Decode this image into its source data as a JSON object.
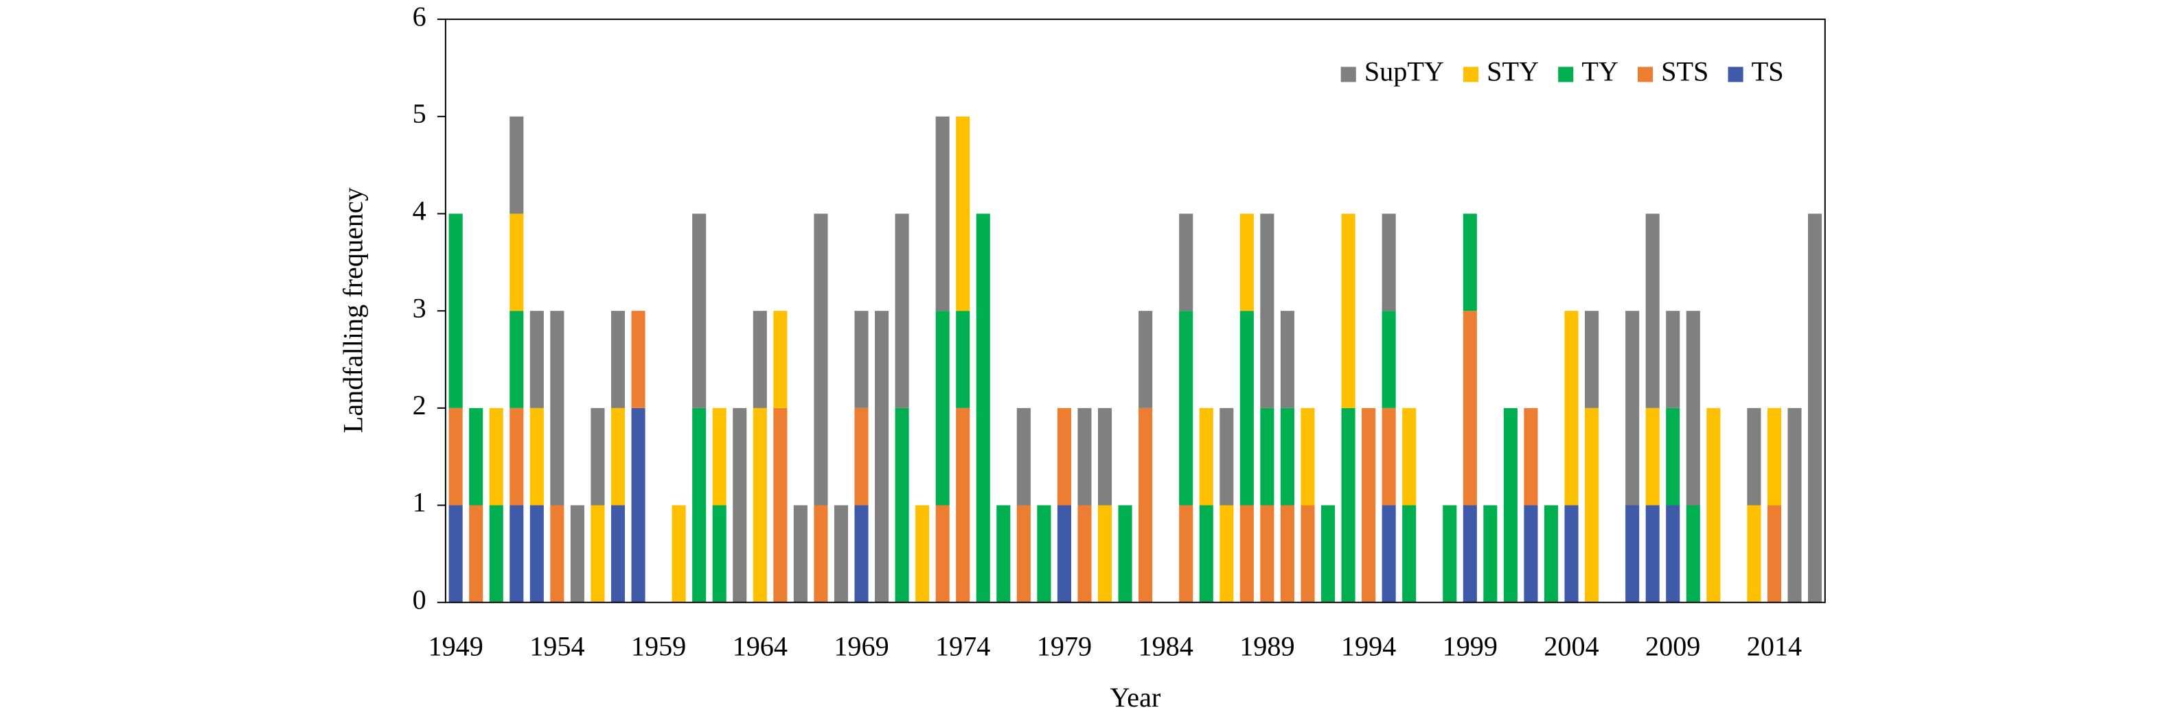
{
  "chart_data": {
    "type": "stacked_bar",
    "x_label": "Year",
    "y_label": "Landfalling frequency",
    "categories": [
      "1949",
      null,
      null,
      null,
      null,
      "1954",
      null,
      null,
      null,
      null,
      "1959",
      null,
      null,
      null,
      null,
      "1964",
      null,
      null,
      null,
      null,
      "1969",
      null,
      null,
      null,
      null,
      "1974",
      null,
      null,
      null,
      null,
      "1979",
      null,
      null,
      null,
      null,
      "1984",
      null,
      null,
      null,
      null,
      "1989",
      null,
      null,
      null,
      null,
      "1994",
      null,
      null,
      null,
      null,
      "1999",
      null,
      null,
      null,
      null,
      "2004",
      null,
      null,
      null,
      null,
      "2009",
      null,
      null,
      null,
      null,
      "2014",
      null,
      null
    ],
    "series": [
      {
        "name": "TS",
        "color": "#3f5aa8",
        "values": [
          1,
          0,
          0,
          1,
          1,
          0,
          0,
          0,
          1,
          2,
          0,
          0,
          0,
          0,
          0,
          0,
          0,
          0,
          0,
          0,
          1,
          0,
          0,
          0,
          0,
          0,
          0,
          0,
          0,
          0,
          1,
          0,
          0,
          0,
          0,
          0,
          0,
          0,
          0,
          0,
          0,
          0,
          0,
          0,
          0,
          0,
          1,
          0,
          0,
          0,
          1,
          0,
          0,
          1,
          0,
          1,
          0,
          0,
          1,
          1,
          1,
          0,
          0,
          0,
          0,
          0,
          0,
          0
        ]
      },
      {
        "name": "STS",
        "color": "#ed7d31",
        "values": [
          1,
          1,
          0,
          1,
          0,
          1,
          0,
          0,
          0,
          1,
          0,
          0,
          0,
          0,
          0,
          0,
          2,
          0,
          1,
          0,
          1,
          0,
          0,
          0,
          1,
          2,
          0,
          0,
          1,
          0,
          1,
          1,
          0,
          0,
          2,
          0,
          1,
          0,
          0,
          1,
          1,
          1,
          1,
          0,
          0,
          2,
          1,
          0,
          0,
          0,
          2,
          0,
          0,
          1,
          0,
          0,
          0,
          0,
          0,
          0,
          0,
          0,
          0,
          0,
          0,
          1,
          0,
          0
        ]
      },
      {
        "name": "TY",
        "color": "#00b050",
        "values": [
          2,
          1,
          1,
          1,
          0,
          0,
          0,
          0,
          0,
          0,
          0,
          0,
          2,
          1,
          0,
          0,
          0,
          0,
          0,
          0,
          0,
          0,
          2,
          0,
          2,
          1,
          4,
          1,
          0,
          1,
          0,
          0,
          0,
          1,
          0,
          0,
          2,
          1,
          0,
          2,
          1,
          1,
          0,
          1,
          2,
          0,
          1,
          1,
          0,
          1,
          1,
          1,
          2,
          0,
          1,
          0,
          0,
          0,
          0,
          0,
          1,
          1,
          0,
          0,
          0,
          0,
          0,
          0
        ]
      },
      {
        "name": "STY",
        "color": "#ffc000",
        "values": [
          0,
          0,
          1,
          1,
          1,
          0,
          0,
          1,
          1,
          0,
          0,
          1,
          0,
          1,
          0,
          2,
          1,
          0,
          0,
          0,
          0,
          0,
          0,
          1,
          0,
          2,
          0,
          0,
          0,
          0,
          0,
          0,
          1,
          0,
          0,
          0,
          0,
          1,
          1,
          1,
          0,
          0,
          1,
          0,
          2,
          0,
          0,
          1,
          0,
          0,
          0,
          0,
          0,
          0,
          0,
          2,
          2,
          0,
          0,
          1,
          0,
          0,
          2,
          0,
          1,
          1,
          0,
          0
        ]
      },
      {
        "name": "SupTY",
        "color": "#808080",
        "values": [
          0,
          0,
          0,
          1,
          1,
          2,
          1,
          1,
          1,
          0,
          0,
          0,
          2,
          0,
          2,
          1,
          0,
          1,
          3,
          1,
          1,
          3,
          2,
          0,
          2,
          0,
          0,
          0,
          1,
          0,
          0,
          1,
          1,
          0,
          1,
          0,
          1,
          0,
          1,
          0,
          2,
          1,
          0,
          0,
          0,
          0,
          1,
          0,
          0,
          0,
          0,
          0,
          0,
          0,
          0,
          0,
          1,
          0,
          2,
          2,
          1,
          2,
          0,
          0,
          1,
          0,
          2,
          4
        ]
      }
    ],
    "ylim": [
      0,
      6
    ],
    "yticks": [
      0,
      1,
      2,
      3,
      4,
      5,
      6
    ],
    "legend": "top-right",
    "grid": false
  }
}
